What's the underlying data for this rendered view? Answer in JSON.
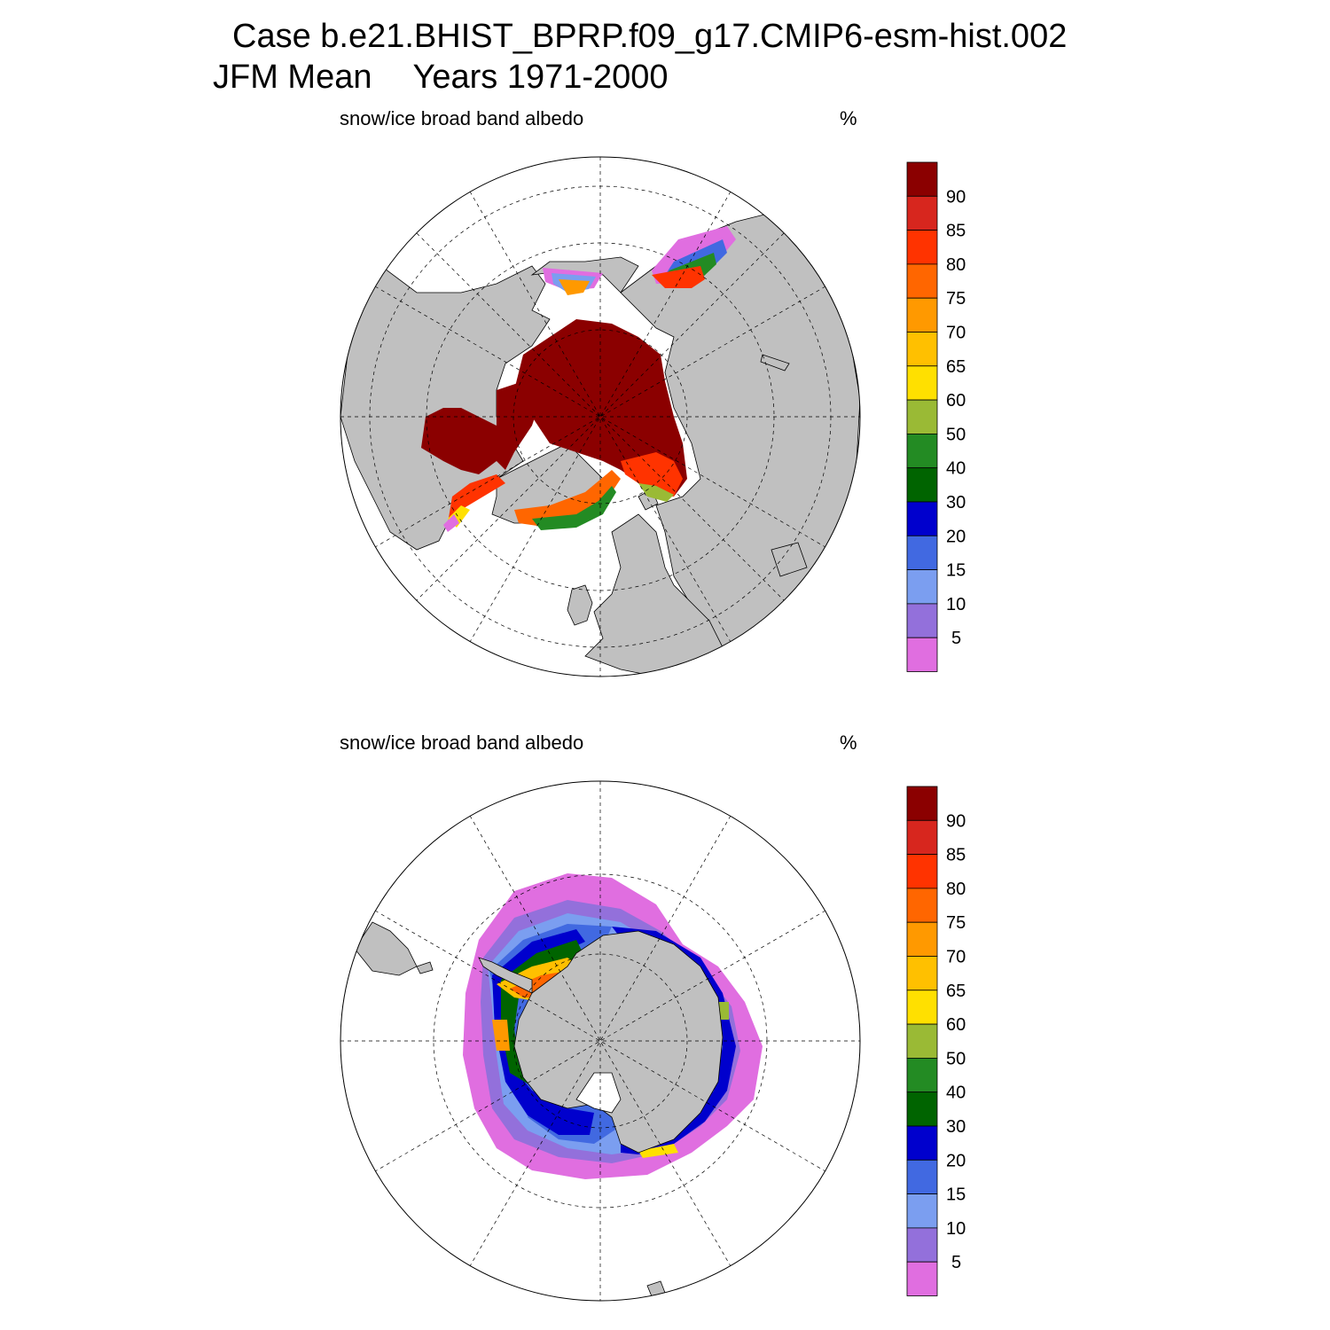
{
  "title": {
    "line1": "Case b.e21.BHIST_BPRP.f09_g17.CMIP6-esm-hist.002",
    "season": "JFM Mean",
    "years": "Years 1971-2000"
  },
  "panels": [
    {
      "hemisphere": "north",
      "variable": "snow/ice broad band albedo",
      "unit": "%"
    },
    {
      "hemisphere": "south",
      "variable": "snow/ice broad band albedo",
      "unit": "%"
    }
  ],
  "colorbar": {
    "labels": [
      "90",
      "85",
      "80",
      "75",
      "70",
      "65",
      "60",
      "50",
      "40",
      "30",
      "20",
      "15",
      "10",
      "5"
    ],
    "colors": [
      "#8b0000",
      "#d7261e",
      "#ff3300",
      "#ff6600",
      "#ff9900",
      "#ffc000",
      "#ffe000",
      "#9aba35",
      "#238b23",
      "#006400",
      "#0000cd",
      "#4169e1",
      "#7b9ef0",
      "#9370db",
      "#e06ee0"
    ]
  },
  "map_colors": {
    "land": "#c0c0c0",
    "ocean": "#ffffff"
  }
}
